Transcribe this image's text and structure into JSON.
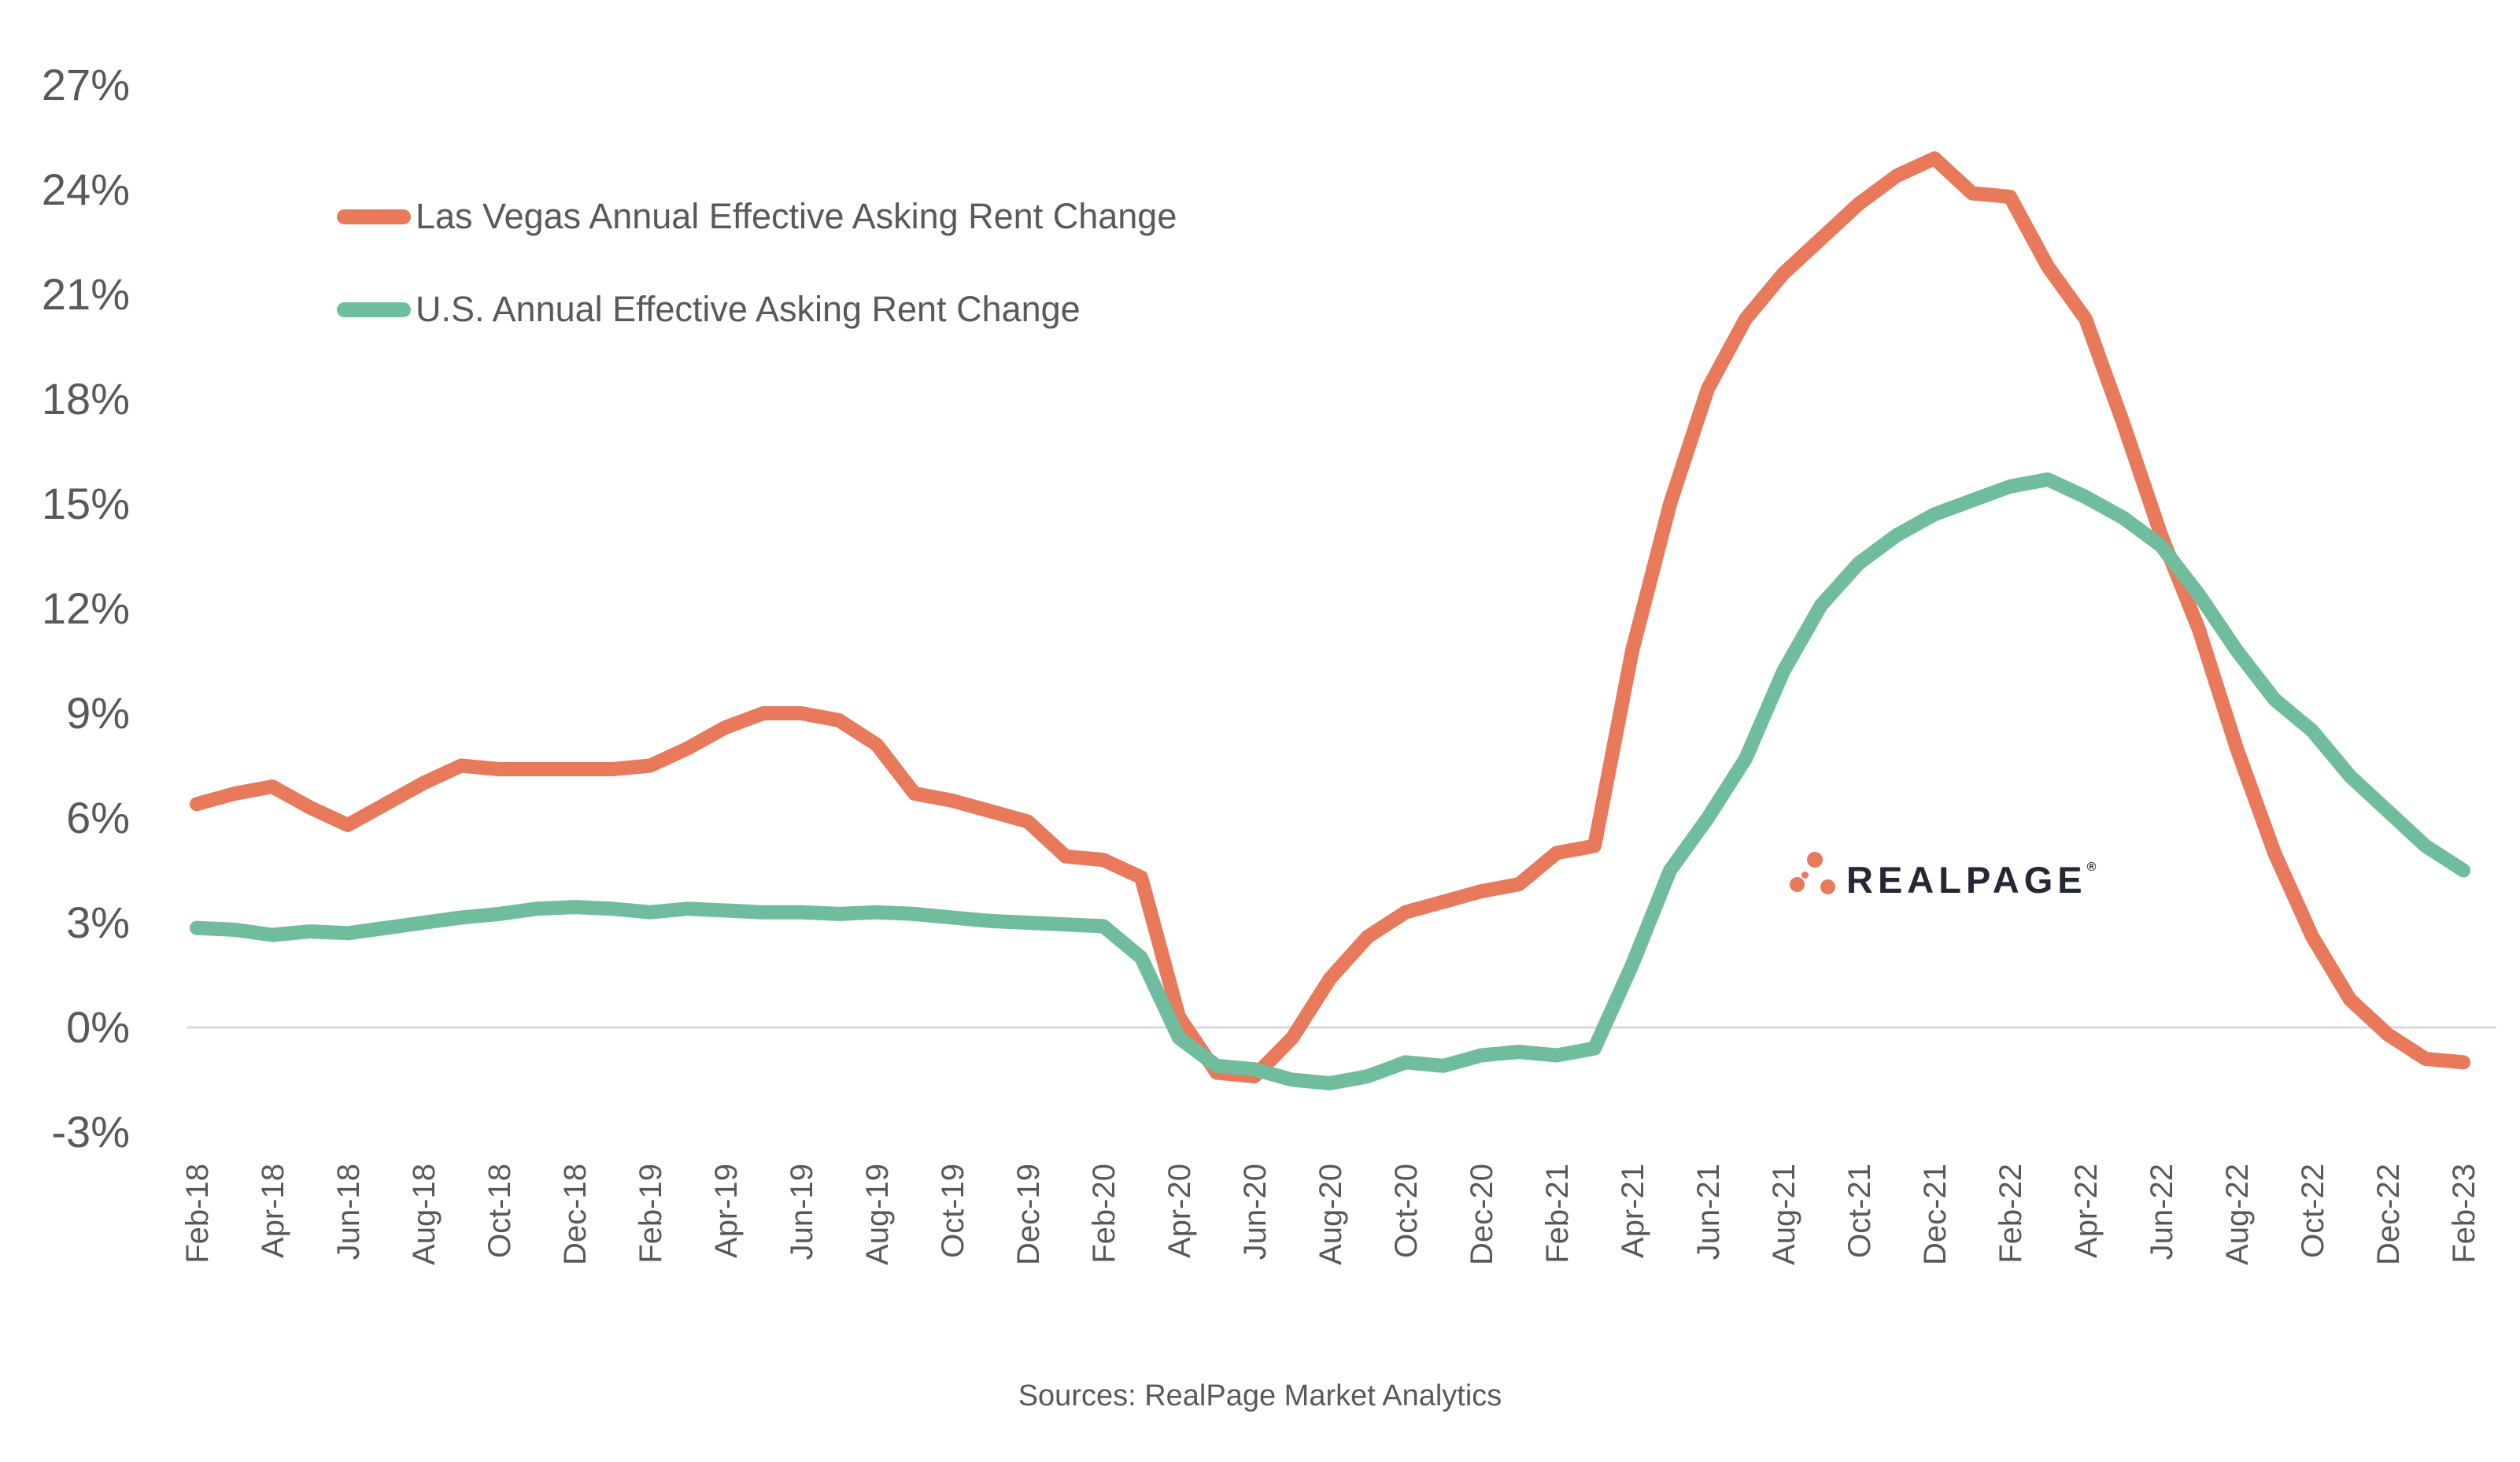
{
  "chart_data": {
    "type": "line",
    "x": [
      "Feb-18",
      "Mar-18",
      "Apr-18",
      "May-18",
      "Jun-18",
      "Jul-18",
      "Aug-18",
      "Sep-18",
      "Oct-18",
      "Nov-18",
      "Dec-18",
      "Jan-19",
      "Feb-19",
      "Mar-19",
      "Apr-19",
      "May-19",
      "Jun-19",
      "Jul-19",
      "Aug-19",
      "Sep-19",
      "Oct-19",
      "Nov-19",
      "Dec-19",
      "Jan-20",
      "Feb-20",
      "Mar-20",
      "Apr-20",
      "May-20",
      "Jun-20",
      "Jul-20",
      "Aug-20",
      "Sep-20",
      "Oct-20",
      "Nov-20",
      "Dec-20",
      "Jan-21",
      "Feb-21",
      "Mar-21",
      "Apr-21",
      "May-21",
      "Jun-21",
      "Jul-21",
      "Aug-21",
      "Sep-21",
      "Oct-21",
      "Nov-21",
      "Dec-21",
      "Jan-22",
      "Feb-22",
      "Mar-22",
      "Apr-22",
      "May-22",
      "Jun-22",
      "Jul-22",
      "Aug-22",
      "Sep-22",
      "Oct-22",
      "Nov-22",
      "Dec-22",
      "Jan-23",
      "Feb-23"
    ],
    "series": [
      {
        "name": "Las Vegas Annual Effective Asking Rent Change",
        "color": "#E8795B",
        "values": [
          6.4,
          6.7,
          6.9,
          6.3,
          5.8,
          6.4,
          7.0,
          7.5,
          7.4,
          7.4,
          7.4,
          7.4,
          7.5,
          8.0,
          8.6,
          9.0,
          9.0,
          8.8,
          8.1,
          6.7,
          6.5,
          6.2,
          5.9,
          4.9,
          4.8,
          4.3,
          0.3,
          -1.3,
          -1.4,
          -0.3,
          1.4,
          2.6,
          3.3,
          3.6,
          3.9,
          4.1,
          5.0,
          5.2,
          10.8,
          15.0,
          18.3,
          20.3,
          21.6,
          22.6,
          23.6,
          24.4,
          24.9,
          23.9,
          23.8,
          21.8,
          20.3,
          17.3,
          14.1,
          11.4,
          8.0,
          5.0,
          2.6,
          0.8,
          -0.2,
          -0.9,
          -1.0
        ]
      },
      {
        "name": "U.S. Annual Effective Asking Rent Change",
        "color": "#6FBD9D",
        "values": [
          2.85,
          2.8,
          2.65,
          2.75,
          2.7,
          2.85,
          3.0,
          3.15,
          3.25,
          3.4,
          3.45,
          3.4,
          3.3,
          3.4,
          3.35,
          3.3,
          3.3,
          3.25,
          3.3,
          3.25,
          3.15,
          3.05,
          3.0,
          2.95,
          2.9,
          2.0,
          -0.3,
          -1.1,
          -1.2,
          -1.5,
          -1.6,
          -1.4,
          -1.0,
          -1.1,
          -0.8,
          -0.7,
          -0.8,
          -0.6,
          1.8,
          4.5,
          6.0,
          7.7,
          10.2,
          12.1,
          13.3,
          14.1,
          14.7,
          15.1,
          15.5,
          15.7,
          15.2,
          14.6,
          13.8,
          12.4,
          10.8,
          9.4,
          8.5,
          7.2,
          6.2,
          5.2,
          4.5
        ]
      }
    ],
    "title": "",
    "xlabel": "",
    "ylabel": "",
    "ylim": [
      -3,
      27
    ],
    "ytick_step": 3,
    "ytick_suffix": "%",
    "xtick_every": 2,
    "grid": "only 0% horizontal gridline",
    "gridline_value": 0,
    "gridline_color": "#D9D9D9",
    "axis_text_color": "#595959",
    "legend_position": "upper-left inside plot"
  },
  "legend": {
    "items": [
      {
        "label": "Las Vegas Annual Effective Asking Rent Change",
        "color": "#E8795B"
      },
      {
        "label": "U.S. Annual Effective Asking Rent Change",
        "color": "#6FBD9D"
      }
    ]
  },
  "logo": {
    "text": "REALPAGE",
    "registered_mark": "®",
    "dot_color": "#E8795B",
    "text_color": "#232834"
  },
  "footer": {
    "sources": "Sources: RealPage Market Analytics"
  }
}
